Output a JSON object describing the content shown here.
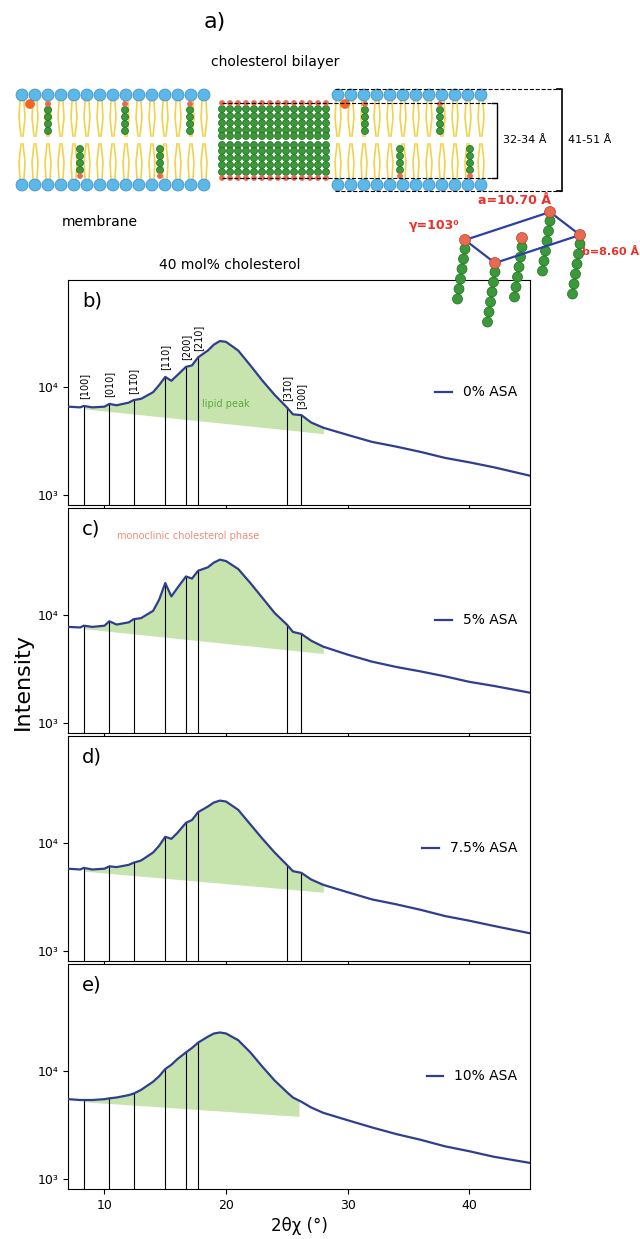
{
  "diagram": {
    "panel_label": "a)",
    "bilayer_label": "cholesterol bilayer",
    "membrane_label": "membrane",
    "inner_thickness": "32-34 Å",
    "outer_thickness": "41-51 Å"
  },
  "figure_title": "40 mol% cholesterol",
  "y_label": "Intensity",
  "unit_cell": {
    "a": "a=10.70 Å",
    "b": "b=8.60 Å",
    "gamma": "γ=103⁰"
  },
  "chart_data": [
    {
      "type": "line",
      "title": "b)",
      "x": [
        7,
        8,
        8.3,
        9,
        10,
        10.4,
        11,
        12,
        12.4,
        13,
        14,
        14.5,
        15,
        15.5,
        16,
        16.7,
        17.2,
        17.7,
        18.5,
        19,
        19.5,
        20,
        21,
        22,
        23,
        24,
        25,
        25.5,
        26.2,
        27,
        28,
        30,
        32,
        34,
        36,
        38,
        40,
        42,
        45
      ],
      "series": [
        {
          "name": "0% ASA",
          "color": "#2e3f8f",
          "values": [
            6600,
            6500,
            6700,
            6500,
            6600,
            7000,
            6800,
            7200,
            7600,
            7800,
            9000,
            10500,
            12500,
            11500,
            13000,
            15500,
            16000,
            19000,
            22000,
            25000,
            27000,
            26500,
            22000,
            16000,
            11500,
            8500,
            6500,
            5600,
            5500,
            4700,
            4200,
            3600,
            3100,
            2800,
            2500,
            2200,
            2000,
            1800,
            1500
          ]
        }
      ],
      "xlim": [
        7,
        45
      ],
      "xticks": [
        10,
        20,
        30,
        40
      ],
      "ylim": [
        800,
        100000
      ],
      "yticks": [
        {
          "value": 1000,
          "label": "10³"
        },
        {
          "value": 10000,
          "label": "10⁴"
        }
      ],
      "log": "y",
      "tick_labels": "y",
      "legend": "center right",
      "peaks": [
        {
          "x": 8.3,
          "label": "[100]"
        },
        {
          "x": 10.4,
          "label": "[010]"
        },
        {
          "x": 12.4,
          "label": "[11̅0]"
        },
        {
          "x": 15.0,
          "label": "[110]"
        },
        {
          "x": 16.7,
          "label": "[200]"
        },
        {
          "x": 17.7,
          "label": "[210]"
        },
        {
          "x": 25.0,
          "label": "[31̅0]"
        },
        {
          "x": 26.2,
          "label": "[300]"
        }
      ],
      "lipid_peak": {
        "x": [
          8.3,
          28
        ],
        "values": [
          6300,
          3700
        ],
        "color": "#bfe0a0"
      },
      "annotations": [
        {
          "text": "lipid peak",
          "x": 20,
          "y": 7000,
          "color": "#5aa83c"
        }
      ]
    },
    {
      "type": "line",
      "title": "c)",
      "x": [
        7,
        8,
        8.3,
        9,
        10,
        10.4,
        11,
        12,
        12.4,
        13,
        14,
        14.5,
        15,
        15.5,
        16,
        16.7,
        17.2,
        17.7,
        18.5,
        19,
        19.5,
        20,
        21,
        22,
        23,
        24,
        25,
        25.5,
        26.2,
        27,
        28,
        30,
        32,
        34,
        36,
        38,
        40,
        42,
        45
      ],
      "series": [
        {
          "name": "5% ASA",
          "color": "#2e3f8f",
          "values": [
            7800,
            7700,
            8000,
            7800,
            8000,
            8800,
            8200,
            8600,
            9200,
            9400,
            11000,
            14000,
            20000,
            15000,
            18000,
            23000,
            22000,
            26000,
            28000,
            31000,
            33000,
            32000,
            27000,
            20000,
            14500,
            10500,
            8200,
            7000,
            6700,
            5800,
            5100,
            4300,
            3700,
            3300,
            3000,
            2700,
            2400,
            2200,
            1900
          ]
        }
      ],
      "xlim": [
        7,
        45
      ],
      "xticks": [
        10,
        20,
        30,
        40
      ],
      "ylim": [
        800,
        100000
      ],
      "yticks": [
        {
          "value": 1000,
          "label": "10³"
        },
        {
          "value": 10000,
          "label": "10⁴"
        }
      ],
      "log": "y",
      "tick_labels": "y",
      "legend": "center right",
      "peaks": [
        {
          "x": 8.3
        },
        {
          "x": 10.4
        },
        {
          "x": 12.4
        },
        {
          "x": 15.0
        },
        {
          "x": 16.7
        },
        {
          "x": 17.7
        },
        {
          "x": 25.0
        },
        {
          "x": 26.2
        }
      ],
      "lipid_peak": {
        "x": [
          8.3,
          28
        ],
        "values": [
          7500,
          4400
        ],
        "color": "#bfe0a0"
      },
      "annotations": [
        {
          "text": "monoclinic cholesterol phase",
          "x": 11,
          "y": 55000,
          "color": "#f08a7a"
        }
      ]
    },
    {
      "type": "line",
      "title": "d)",
      "x": [
        7,
        8,
        8.3,
        9,
        10,
        10.4,
        11,
        12,
        12.4,
        13,
        14,
        14.5,
        15,
        15.5,
        16,
        16.7,
        17.2,
        17.7,
        18.5,
        19,
        19.5,
        20,
        21,
        22,
        23,
        24,
        25,
        25.5,
        26.2,
        27,
        28,
        30,
        32,
        34,
        36,
        38,
        40,
        42,
        45
      ],
      "series": [
        {
          "name": "7.5% ASA",
          "color": "#2e3f8f",
          "values": [
            5800,
            5700,
            5900,
            5700,
            5800,
            6100,
            6000,
            6300,
            6600,
            6900,
            8200,
            9500,
            11500,
            11000,
            12500,
            15500,
            16500,
            19500,
            22000,
            24000,
            25000,
            24500,
            20500,
            15000,
            11000,
            8200,
            6300,
            5500,
            5300,
            4600,
            4100,
            3500,
            3000,
            2700,
            2400,
            2100,
            1900,
            1700,
            1450
          ]
        }
      ],
      "xlim": [
        7,
        45
      ],
      "xticks": [
        10,
        20,
        30,
        40
      ],
      "ylim": [
        800,
        100000
      ],
      "yticks": [
        {
          "value": 1000,
          "label": "10³"
        },
        {
          "value": 10000,
          "label": "10⁴"
        }
      ],
      "log": "y",
      "tick_labels": "y",
      "legend": "center right",
      "peaks": [
        {
          "x": 8.3
        },
        {
          "x": 10.4
        },
        {
          "x": 12.4
        },
        {
          "x": 15.0
        },
        {
          "x": 16.7
        },
        {
          "x": 17.7
        },
        {
          "x": 25.0
        },
        {
          "x": 26.2
        }
      ],
      "lipid_peak": {
        "x": [
          8.3,
          28
        ],
        "values": [
          5500,
          3500
        ],
        "color": "#bfe0a0"
      }
    },
    {
      "type": "line",
      "title": "e)",
      "x_label": "2θχ (°)",
      "x": [
        7,
        8,
        8.3,
        9,
        10,
        10.4,
        11,
        12,
        12.4,
        13,
        14,
        14.5,
        15,
        15.5,
        16,
        16.7,
        17.2,
        17.7,
        18.5,
        19,
        19.5,
        20,
        21,
        22,
        23,
        24,
        25,
        25.5,
        26.2,
        27,
        28,
        30,
        32,
        34,
        36,
        38,
        40,
        42,
        45
      ],
      "series": [
        {
          "name": "10% ASA",
          "color": "#2e3f8f",
          "values": [
            5500,
            5400,
            5400,
            5400,
            5500,
            5600,
            5700,
            6000,
            6200,
            6700,
            8000,
            9000,
            10500,
            11500,
            13000,
            15000,
            16500,
            18500,
            21000,
            22500,
            23000,
            22500,
            19500,
            15000,
            11000,
            8200,
            6400,
            5700,
            5200,
            4600,
            4100,
            3500,
            3000,
            2600,
            2300,
            2000,
            1800,
            1600,
            1400
          ]
        }
      ],
      "xlim": [
        7,
        45
      ],
      "xticks": [
        10,
        20,
        30,
        40
      ],
      "ylim": [
        800,
        100000
      ],
      "yticks": [
        {
          "value": 1000,
          "label": "10³"
        },
        {
          "value": 10000,
          "label": "10⁴"
        }
      ],
      "log": "y",
      "legend": "center right",
      "peaks": [
        {
          "x": 8.3
        },
        {
          "x": 10.4
        },
        {
          "x": 12.4
        },
        {
          "x": 15.0
        },
        {
          "x": 16.7
        },
        {
          "x": 17.7
        }
      ],
      "lipid_peak": {
        "x": [
          8.3,
          26
        ],
        "values": [
          5200,
          3800
        ],
        "color": "#bfe0a0"
      }
    }
  ]
}
